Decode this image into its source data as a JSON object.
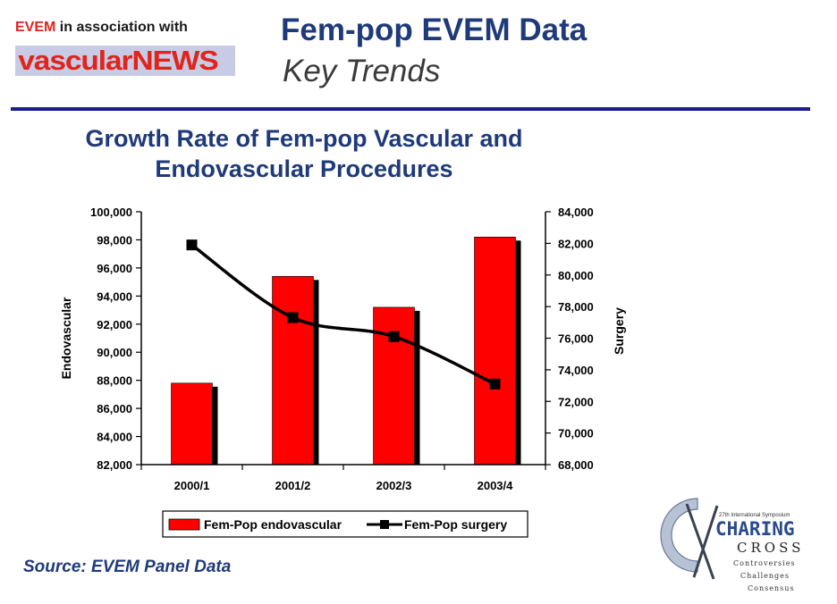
{
  "header": {
    "assoc_prefix": "EVEM",
    "assoc_suffix": " in association with",
    "logo_text": "vascularNEWS",
    "title": "Fem-pop EVEM Data",
    "subtitle": "Key Trends"
  },
  "footer": {
    "source": "Source: EVEM Panel Data"
  },
  "cx_logo": {
    "line1": "27th International Symposium",
    "line2": "CHARING",
    "line3": "CROSS",
    "line4": "Controversies",
    "line5": "Challenges",
    "line6": "Consensus"
  },
  "colors": {
    "bar": "#ff0000",
    "bar_shadow": "#000000",
    "line": "#000000",
    "title": "#1f3a7a",
    "rule": "#1c1c8c"
  },
  "chart_data": {
    "type": "bar",
    "title": "Growth Rate of Fem-pop Vascular and Endovascular Procedures",
    "categories": [
      "2000/1",
      "2001/2",
      "2002/3",
      "2003/4"
    ],
    "y_label": "Endovascular",
    "y2_label": "Surgery",
    "ylim": [
      82000,
      100000
    ],
    "y2lim": [
      68000,
      84000
    ],
    "y_ticks": [
      "82,000",
      "84,000",
      "86,000",
      "88,000",
      "90,000",
      "92,000",
      "94,000",
      "96,000",
      "98,000",
      "100,000"
    ],
    "y2_ticks": [
      "68,000",
      "70,000",
      "72,000",
      "74,000",
      "76,000",
      "78,000",
      "80,000",
      "82,000",
      "84,000"
    ],
    "series": [
      {
        "name": "Fem-Pop endovascular",
        "type": "bar",
        "axis": "left",
        "values": [
          87800,
          95400,
          93200,
          98200
        ]
      },
      {
        "name": "Fem-Pop surgery",
        "type": "line",
        "axis": "right",
        "values": [
          81900,
          77300,
          76100,
          73100
        ]
      }
    ],
    "grid": false,
    "legend_position": "bottom"
  }
}
